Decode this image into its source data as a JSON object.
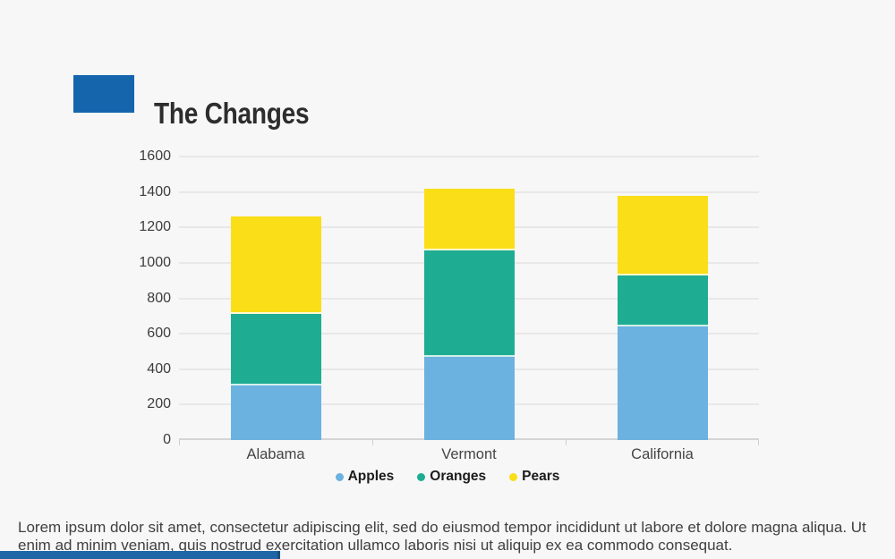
{
  "slide": {
    "title": "The Changes",
    "body_text": "Lorem ipsum dolor sit amet, consectetur adipiscing elit, sed do eiusmod tempor incididunt ut labore et dolore magna aliqua. Ut enim ad minim veniam, quis nostrud exercitation ullamco laboris nisi ut aliquip ex ea commodo consequat.",
    "accent_color": "#1565ad",
    "footer_bar_color": "#1e66a6",
    "footer_bar_cap_color": "#1b4f7c",
    "background_color": "#f7f7f7"
  },
  "chart_data": {
    "type": "bar",
    "stacked": true,
    "title": "",
    "categories": [
      "Alabama",
      "Vermont",
      "California"
    ],
    "series": [
      {
        "name": "Apples",
        "color": "#6cb2e1",
        "values": [
          310,
          470,
          640
        ]
      },
      {
        "name": "Oranges",
        "color": "#1ead93",
        "values": [
          400,
          600,
          290
        ]
      },
      {
        "name": "Pears",
        "color": "#fade17",
        "values": [
          550,
          350,
          450
        ]
      }
    ],
    "totals": [
      1260,
      1420,
      1380
    ],
    "ylim": [
      0,
      1600
    ],
    "ytick_step": 200,
    "ytick_labels": [
      "0",
      "200",
      "400",
      "600",
      "800",
      "1000",
      "1200",
      "1400",
      "1600"
    ],
    "grid": true,
    "legend_position": "bottom"
  }
}
